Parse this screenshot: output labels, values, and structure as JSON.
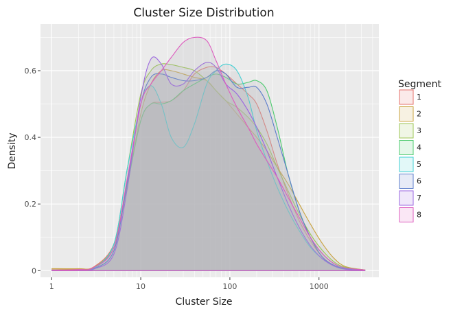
{
  "chart_data": {
    "type": "area",
    "title": "Cluster Size Distribution",
    "xlabel": "Cluster Size",
    "ylabel": "Density",
    "x_scale": "log10",
    "xlim": [
      0.75,
      4700
    ],
    "ylim": [
      -0.02,
      0.74
    ],
    "x_ticks": [
      1,
      10,
      100,
      1000
    ],
    "x_tick_labels": [
      "1",
      "10",
      "100",
      "1000"
    ],
    "y_ticks": [
      0,
      0.2,
      0.4,
      0.6
    ],
    "y_tick_labels": [
      "0",
      "0.2",
      "0.4",
      "0.6"
    ],
    "grid": true,
    "legend": {
      "title": "Segment",
      "position": "right"
    },
    "fill_color": "#b3b3bb",
    "fill_opacity": 0.2,
    "series": [
      {
        "name": "1",
        "color": "#e5706a",
        "x": [
          1,
          2,
          3,
          5,
          7,
          10,
          13,
          17,
          22,
          30,
          40,
          55,
          70,
          90,
          120,
          160,
          200,
          260,
          340,
          450,
          600,
          800,
          1100,
          1500,
          2000,
          3300
        ],
        "y": [
          0.003,
          0.005,
          0.012,
          0.08,
          0.26,
          0.45,
          0.5,
          0.505,
          0.51,
          0.54,
          0.59,
          0.61,
          0.61,
          0.59,
          0.56,
          0.53,
          0.5,
          0.42,
          0.32,
          0.23,
          0.15,
          0.09,
          0.04,
          0.015,
          0.007,
          0.002
        ]
      },
      {
        "name": "2",
        "color": "#c9a33e",
        "x": [
          1,
          2,
          3,
          5,
          7,
          10,
          13,
          17,
          22,
          30,
          40,
          55,
          70,
          90,
          120,
          160,
          200,
          260,
          340,
          450,
          600,
          800,
          1100,
          1500,
          2000,
          3300
        ],
        "y": [
          0.006,
          0.006,
          0.01,
          0.07,
          0.25,
          0.47,
          0.56,
          0.6,
          0.6,
          0.59,
          0.58,
          0.57,
          0.54,
          0.51,
          0.47,
          0.43,
          0.4,
          0.36,
          0.31,
          0.26,
          0.2,
          0.14,
          0.08,
          0.035,
          0.012,
          0.002
        ]
      },
      {
        "name": "3",
        "color": "#9cc553",
        "x": [
          1,
          2,
          3,
          5,
          7,
          10,
          13,
          17,
          22,
          30,
          40,
          55,
          70,
          90,
          120,
          160,
          200,
          260,
          340,
          450,
          600,
          800,
          1100,
          1500,
          2000,
          3300
        ],
        "y": [
          0.002,
          0.003,
          0.01,
          0.08,
          0.3,
          0.53,
          0.6,
          0.62,
          0.618,
          0.61,
          0.6,
          0.57,
          0.54,
          0.51,
          0.49,
          0.46,
          0.43,
          0.38,
          0.31,
          0.24,
          0.17,
          0.11,
          0.06,
          0.025,
          0.01,
          0.002
        ]
      },
      {
        "name": "4",
        "color": "#4ccb6e",
        "x": [
          1,
          2,
          3,
          5,
          7,
          10,
          13,
          17,
          22,
          30,
          40,
          55,
          70,
          90,
          120,
          160,
          200,
          260,
          340,
          450,
          600,
          800,
          1100,
          1500,
          2000,
          3300
        ],
        "y": [
          0.001,
          0.002,
          0.008,
          0.07,
          0.25,
          0.45,
          0.5,
          0.5,
          0.51,
          0.54,
          0.56,
          0.58,
          0.59,
          0.58,
          0.56,
          0.565,
          0.57,
          0.54,
          0.43,
          0.29,
          0.18,
          0.1,
          0.05,
          0.02,
          0.008,
          0.001
        ]
      },
      {
        "name": "5",
        "color": "#3fcfd3",
        "x": [
          1,
          2,
          3,
          5,
          7,
          10,
          13,
          17,
          22,
          30,
          40,
          55,
          70,
          90,
          120,
          160,
          200,
          260,
          340,
          450,
          600,
          800,
          1100,
          1500,
          2000,
          3300
        ],
        "y": [
          0.001,
          0.002,
          0.008,
          0.08,
          0.3,
          0.5,
          0.555,
          0.5,
          0.4,
          0.37,
          0.44,
          0.56,
          0.6,
          0.62,
          0.6,
          0.52,
          0.42,
          0.33,
          0.25,
          0.18,
          0.12,
          0.07,
          0.035,
          0.015,
          0.006,
          0.001
        ]
      },
      {
        "name": "6",
        "color": "#5b7ccb",
        "x": [
          1,
          2,
          3,
          5,
          7,
          10,
          13,
          17,
          22,
          30,
          40,
          55,
          70,
          90,
          120,
          160,
          200,
          260,
          340,
          450,
          600,
          800,
          1100,
          1500,
          2000,
          3300
        ],
        "y": [
          0.001,
          0.002,
          0.006,
          0.06,
          0.26,
          0.5,
          0.58,
          0.59,
          0.58,
          0.57,
          0.57,
          0.58,
          0.6,
          0.59,
          0.55,
          0.55,
          0.55,
          0.5,
          0.4,
          0.29,
          0.18,
          0.1,
          0.04,
          0.015,
          0.005,
          0.001
        ]
      },
      {
        "name": "7",
        "color": "#9a64e0",
        "x": [
          1,
          2,
          3,
          5,
          7,
          10,
          13,
          17,
          22,
          30,
          40,
          55,
          70,
          90,
          120,
          160,
          200,
          260,
          340,
          450,
          600,
          800,
          1100,
          1500,
          2000,
          3300
        ],
        "y": [
          0.001,
          0.002,
          0.005,
          0.05,
          0.24,
          0.52,
          0.635,
          0.62,
          0.56,
          0.56,
          0.6,
          0.625,
          0.61,
          0.56,
          0.53,
          0.48,
          0.43,
          0.36,
          0.28,
          0.2,
          0.13,
          0.075,
          0.035,
          0.013,
          0.004,
          0.001
        ]
      },
      {
        "name": "8",
        "color": "#dd5bbe",
        "x": [
          1,
          2,
          3,
          5,
          7,
          10,
          13,
          17,
          22,
          30,
          40,
          55,
          70,
          90,
          120,
          160,
          200,
          260,
          340,
          450,
          600,
          800,
          1100,
          1500,
          2000,
          3300
        ],
        "y": [
          0.001,
          0.003,
          0.01,
          0.07,
          0.27,
          0.5,
          0.56,
          0.6,
          0.64,
          0.685,
          0.7,
          0.69,
          0.63,
          0.56,
          0.49,
          0.43,
          0.38,
          0.33,
          0.28,
          0.22,
          0.16,
          0.1,
          0.05,
          0.02,
          0.008,
          0.002
        ]
      }
    ]
  }
}
